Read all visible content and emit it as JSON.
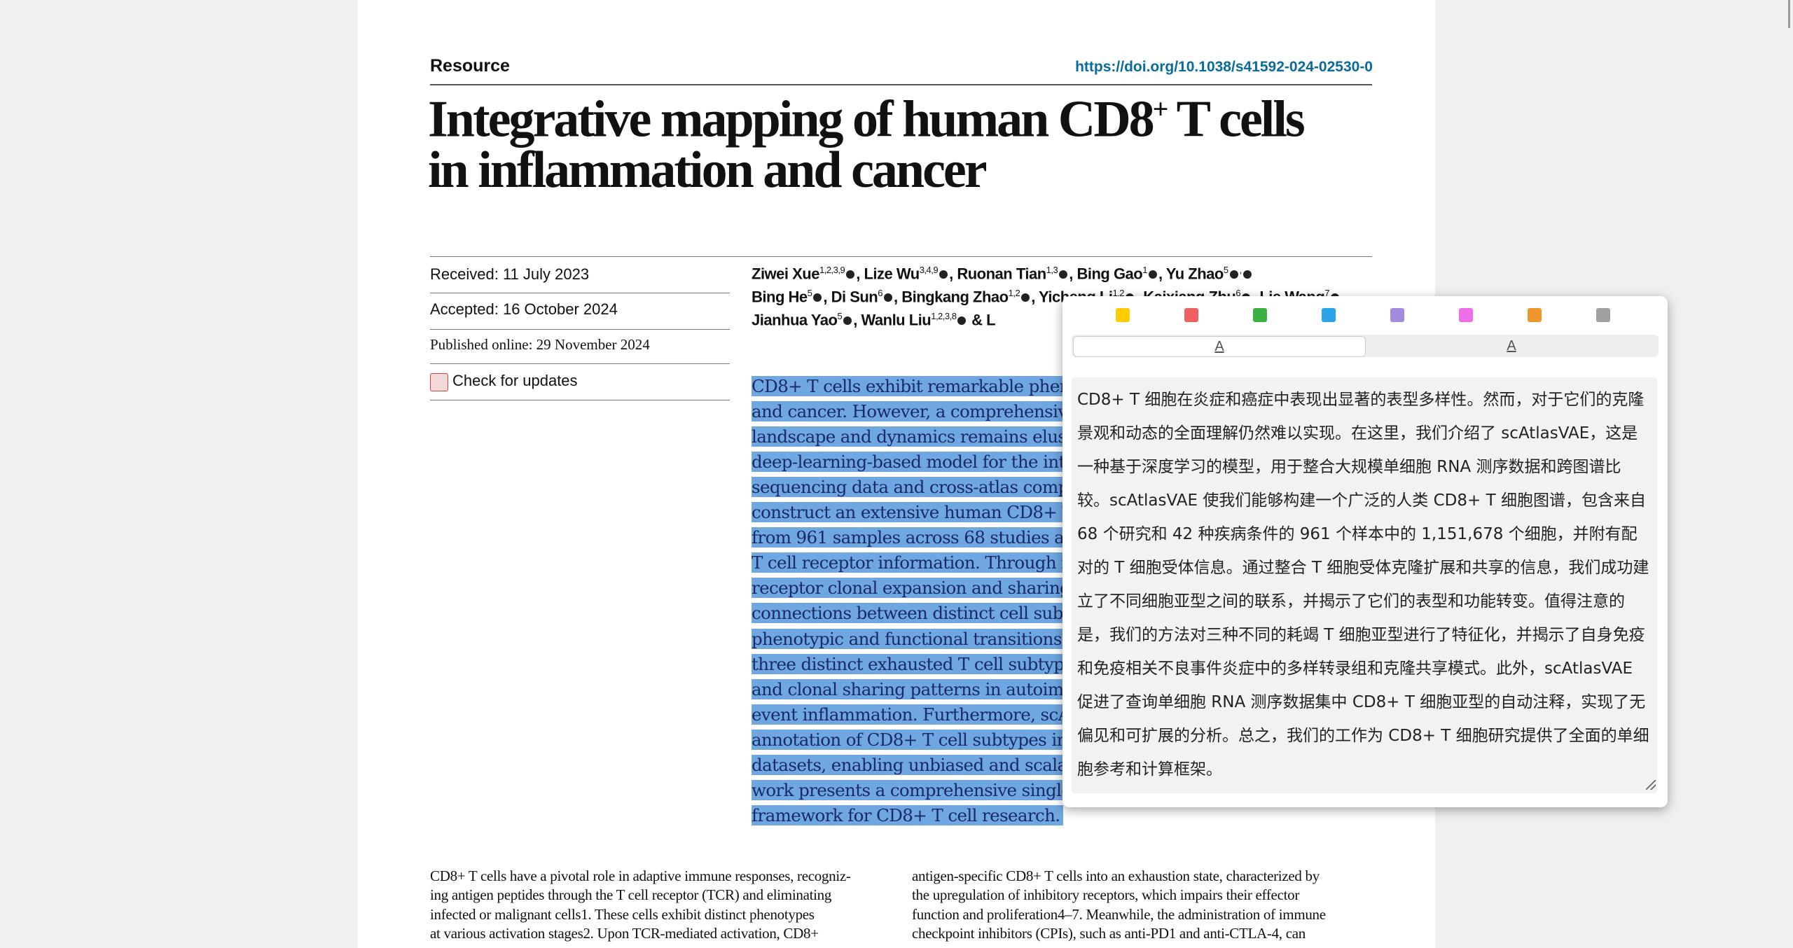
{
  "header": {
    "section": "Resource",
    "doi": "https://doi.org/10.1038/s41592-024-02530-0"
  },
  "title": {
    "line1": "Integrative mapping of human CD8",
    "sup": "+",
    "line1_end": " T cells",
    "line2": "in inflammation and cancer"
  },
  "meta": {
    "received": "Received: 11 July 2023",
    "accepted": "Accepted: 16 October 2024",
    "published": "Published online: 29 November 2024",
    "updates": "Check for updates"
  },
  "authors": [
    [
      "Ziwei Xue",
      "1,2,3,9",
      ", Lize Wu",
      "3,4,9",
      ", Ruonan Tian",
      "1,3",
      ", Bing Gao",
      "1",
      ", Yu Zhao",
      "5",
      ","
    ],
    [
      "Bing He",
      "5",
      ", Di Sun",
      "6",
      ", Bingkang Zhao",
      "1,2",
      ", Yicheng Li",
      "1,2",
      ", Kaixiang Zhu",
      "6",
      ", Lie Wang",
      "7"
    ],
    [
      "Jianhua Yao",
      "5",
      ", Wanlu Liu",
      "1,2,3,8",
      " & L"
    ]
  ],
  "abstract": [
    "CD8+ T cells exhibit remarkable phenotypic diversity in inflammation",
    "and cancer. However, a comprehensive understanding of their clonal",
    "landscape and dynamics remains elusive. Here we introduce scAtlasVAE, a",
    "deep-learning-based model for the integration of large-scale single-cell RNA",
    "sequencing data and cross-atlas comparisons. scAtlasVAE has enabled us to",
    "construct an extensive human CD8+ T cell atlas, comprising 1,151,678 cells",
    "from 961 samples across 68 studies and 42 disease conditions, with paired",
    "T cell receptor information. Through integrating information on T cell",
    "receptor clonal expansion and sharing, we have successfully established",
    "connections between distinct cell subtypes and shed light on their",
    "phenotypic and functional transitions. Notably, our approach characterizes",
    "three distinct exhausted T cell subtypes and reveals diverse transcriptomic",
    "and clonal sharing patterns in autoimmune and immune-related adverse",
    "event inflammation. Furthermore, scAtlasVAE facilitates the automatic",
    "annotation of CD8+ T cell subtypes in query single-cell RNA sequencing",
    "datasets, enabling unbiased and scalable analyses. In conclusion, our",
    "work presents a comprehensive single-cell reference and computational",
    "framework for CD8+ T cell research."
  ],
  "body": {
    "left": [
      "CD8+ T cells have a pivotal role in adaptive immune responses, recogniz-",
      "ing antigen peptides through the T cell receptor (TCR) and eliminating",
      "infected or malignant cells1. These cells exhibit distinct phenotypes",
      "at various activation stages2. Upon TCR-mediated activation, CD8+"
    ],
    "right": [
      "antigen-specific CD8+ T cells into an exhaustion state, characterized by",
      "the upregulation of inhibitory receptors, which impairs their effector",
      "function and proliferation4–7. Meanwhile, the administration of immune",
      "checkpoint inhibitors (CPIs), such as anti-PD1 and anti-CTLA-4, can"
    ]
  },
  "popup": {
    "tabs": [
      "A",
      "A"
    ],
    "translation": "CD8+ T 细胞在炎症和癌症中表现出显著的表型多样性。然而，对于它们的克隆景观和动态的全面理解仍然难以实现。在这里，我们介绍了 scAtlasVAE，这是一种基于深度学习的模型，用于整合大规模单细胞 RNA 测序数据和跨图谱比较。scAtlasVAE 使我们能够构建一个广泛的人类 CD8+ T 细胞图谱，包含来自 68 个研究和 42 种疾病条件的 961 个样本中的 1,151,678 个细胞，并附有配对的 T 细胞受体信息。通过整合 T 细胞受体克隆扩展和共享的信息，我们成功建立了不同细胞亚型之间的联系，并揭示了它们的表型和功能转变。值得注意的是，我们的方法对三种不同的耗竭 T 细胞亚型进行了特征化，并揭示了自身免疫和免疫相关不良事件炎症中的多样转录组和克隆共享模式。此外，scAtlasVAE 促进了查询单细胞 RNA 测序数据集中 CD8+ T 细胞亚型的自动注释，实现了无偏见和可扩展的分析。总之，我们的工作为 CD8+ T 细胞研究提供了全面的单细胞参考和计算框架。"
  }
}
